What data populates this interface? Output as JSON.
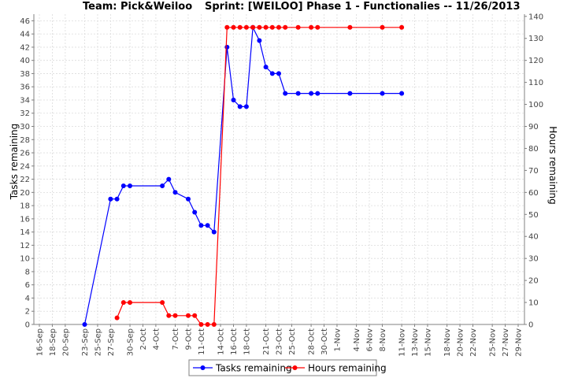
{
  "chart_data": {
    "type": "line",
    "title_left": "Team: Pick&Weiloo",
    "title_right": "Sprint: [WEILOO] Phase 1 - Functionalies -- 11/26/2013",
    "ylabel_left": "Tasks remaining",
    "ylabel_right": "Hours remaining",
    "ylim_left": [
      0,
      47
    ],
    "ylim_right": [
      0,
      141
    ],
    "yticks_left": [
      0,
      2,
      4,
      6,
      8,
      10,
      12,
      14,
      16,
      18,
      20,
      22,
      24,
      26,
      28,
      30,
      32,
      34,
      36,
      38,
      40,
      42,
      44,
      46
    ],
    "yticks_right": [
      0,
      10,
      20,
      30,
      40,
      50,
      60,
      70,
      80,
      90,
      100,
      110,
      120,
      130,
      140
    ],
    "x_labels": [
      "16-Sep",
      "18-Sep",
      "20-Sep",
      "23-Sep",
      "25-Sep",
      "27-Sep",
      "30-Sep",
      "2-Oct",
      "4-Oct",
      "7-Oct",
      "9-Oct",
      "11-Oct",
      "14-Oct",
      "16-Oct",
      "18-Oct",
      "21-Oct",
      "23-Oct",
      "25-Oct",
      "28-Oct",
      "30-Oct",
      "1-Nov",
      "4-Nov",
      "6-Nov",
      "8-Nov",
      "11-Nov",
      "13-Nov",
      "15-Nov",
      "18-Nov",
      "20-Nov",
      "22-Nov",
      "25-Nov",
      "27-Nov",
      "29-Nov"
    ],
    "grid": true,
    "legend_position": "bottom",
    "series": [
      {
        "name": "Tasks remaining",
        "axis": "left",
        "color": "#0000ff",
        "points": [
          [
            "23-Sep",
            0
          ],
          [
            "27-Sep",
            19
          ],
          [
            "28-Sep",
            19
          ],
          [
            "29-Sep",
            21
          ],
          [
            "30-Sep",
            21
          ],
          [
            "5-Oct",
            21
          ],
          [
            "6-Oct",
            22
          ],
          [
            "7-Oct",
            20
          ],
          [
            "9-Oct",
            19
          ],
          [
            "10-Oct",
            17
          ],
          [
            "11-Oct",
            15
          ],
          [
            "12-Oct",
            15
          ],
          [
            "13-Oct",
            14
          ],
          [
            "15-Oct",
            42
          ],
          [
            "16-Oct",
            34
          ],
          [
            "17-Oct",
            33
          ],
          [
            "18-Oct",
            33
          ],
          [
            "19-Oct",
            45
          ],
          [
            "20-Oct",
            43
          ],
          [
            "21-Oct",
            39
          ],
          [
            "22-Oct",
            38
          ],
          [
            "23-Oct",
            38
          ],
          [
            "24-Oct",
            35
          ],
          [
            "26-Oct",
            35
          ],
          [
            "28-Oct",
            35
          ],
          [
            "29-Oct",
            35
          ],
          [
            "3-Nov",
            35
          ],
          [
            "8-Nov",
            35
          ],
          [
            "11-Nov",
            35
          ]
        ]
      },
      {
        "name": "Hours remaining",
        "axis": "right",
        "color": "#ff0000",
        "points": [
          [
            "28-Sep",
            3
          ],
          [
            "29-Sep",
            10
          ],
          [
            "30-Sep",
            10
          ],
          [
            "5-Oct",
            10
          ],
          [
            "6-Oct",
            4
          ],
          [
            "7-Oct",
            4
          ],
          [
            "9-Oct",
            4
          ],
          [
            "10-Oct",
            4
          ],
          [
            "11-Oct",
            0
          ],
          [
            "12-Oct",
            0
          ],
          [
            "13-Oct",
            0
          ],
          [
            "15-Oct",
            135
          ],
          [
            "16-Oct",
            135
          ],
          [
            "17-Oct",
            135
          ],
          [
            "18-Oct",
            135
          ],
          [
            "19-Oct",
            135
          ],
          [
            "20-Oct",
            135
          ],
          [
            "21-Oct",
            135
          ],
          [
            "22-Oct",
            135
          ],
          [
            "23-Oct",
            135
          ],
          [
            "24-Oct",
            135
          ],
          [
            "26-Oct",
            135
          ],
          [
            "28-Oct",
            135
          ],
          [
            "29-Oct",
            135
          ],
          [
            "3-Nov",
            135
          ],
          [
            "8-Nov",
            135
          ],
          [
            "11-Nov",
            135
          ]
        ]
      }
    ]
  }
}
